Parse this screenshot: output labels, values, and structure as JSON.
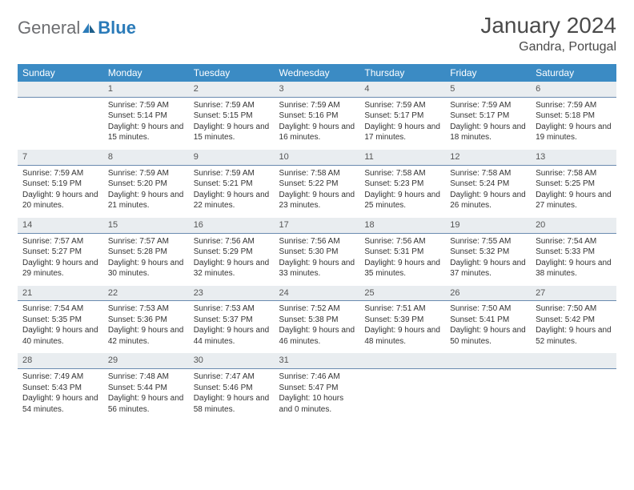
{
  "logo": {
    "general": "General",
    "blue": "Blue"
  },
  "title": "January 2024",
  "location": "Gandra, Portugal",
  "colors": {
    "header_bg": "#3b8bc4",
    "header_text": "#ffffff",
    "daynum_bg": "#e9edf0",
    "daynum_border": "#6a8bb0",
    "logo_gray": "#6d6e71",
    "logo_blue": "#2b7bb9",
    "text": "#333333",
    "page_bg": "#ffffff"
  },
  "weekdays": [
    "Sunday",
    "Monday",
    "Tuesday",
    "Wednesday",
    "Thursday",
    "Friday",
    "Saturday"
  ],
  "first_weekday_index": 1,
  "days": [
    {
      "n": 1,
      "sunrise": "7:59 AM",
      "sunset": "5:14 PM",
      "daylight": "9 hours and 15 minutes."
    },
    {
      "n": 2,
      "sunrise": "7:59 AM",
      "sunset": "5:15 PM",
      "daylight": "9 hours and 15 minutes."
    },
    {
      "n": 3,
      "sunrise": "7:59 AM",
      "sunset": "5:16 PM",
      "daylight": "9 hours and 16 minutes."
    },
    {
      "n": 4,
      "sunrise": "7:59 AM",
      "sunset": "5:17 PM",
      "daylight": "9 hours and 17 minutes."
    },
    {
      "n": 5,
      "sunrise": "7:59 AM",
      "sunset": "5:17 PM",
      "daylight": "9 hours and 18 minutes."
    },
    {
      "n": 6,
      "sunrise": "7:59 AM",
      "sunset": "5:18 PM",
      "daylight": "9 hours and 19 minutes."
    },
    {
      "n": 7,
      "sunrise": "7:59 AM",
      "sunset": "5:19 PM",
      "daylight": "9 hours and 20 minutes."
    },
    {
      "n": 8,
      "sunrise": "7:59 AM",
      "sunset": "5:20 PM",
      "daylight": "9 hours and 21 minutes."
    },
    {
      "n": 9,
      "sunrise": "7:59 AM",
      "sunset": "5:21 PM",
      "daylight": "9 hours and 22 minutes."
    },
    {
      "n": 10,
      "sunrise": "7:58 AM",
      "sunset": "5:22 PM",
      "daylight": "9 hours and 23 minutes."
    },
    {
      "n": 11,
      "sunrise": "7:58 AM",
      "sunset": "5:23 PM",
      "daylight": "9 hours and 25 minutes."
    },
    {
      "n": 12,
      "sunrise": "7:58 AM",
      "sunset": "5:24 PM",
      "daylight": "9 hours and 26 minutes."
    },
    {
      "n": 13,
      "sunrise": "7:58 AM",
      "sunset": "5:25 PM",
      "daylight": "9 hours and 27 minutes."
    },
    {
      "n": 14,
      "sunrise": "7:57 AM",
      "sunset": "5:27 PM",
      "daylight": "9 hours and 29 minutes."
    },
    {
      "n": 15,
      "sunrise": "7:57 AM",
      "sunset": "5:28 PM",
      "daylight": "9 hours and 30 minutes."
    },
    {
      "n": 16,
      "sunrise": "7:56 AM",
      "sunset": "5:29 PM",
      "daylight": "9 hours and 32 minutes."
    },
    {
      "n": 17,
      "sunrise": "7:56 AM",
      "sunset": "5:30 PM",
      "daylight": "9 hours and 33 minutes."
    },
    {
      "n": 18,
      "sunrise": "7:56 AM",
      "sunset": "5:31 PM",
      "daylight": "9 hours and 35 minutes."
    },
    {
      "n": 19,
      "sunrise": "7:55 AM",
      "sunset": "5:32 PM",
      "daylight": "9 hours and 37 minutes."
    },
    {
      "n": 20,
      "sunrise": "7:54 AM",
      "sunset": "5:33 PM",
      "daylight": "9 hours and 38 minutes."
    },
    {
      "n": 21,
      "sunrise": "7:54 AM",
      "sunset": "5:35 PM",
      "daylight": "9 hours and 40 minutes."
    },
    {
      "n": 22,
      "sunrise": "7:53 AM",
      "sunset": "5:36 PM",
      "daylight": "9 hours and 42 minutes."
    },
    {
      "n": 23,
      "sunrise": "7:53 AM",
      "sunset": "5:37 PM",
      "daylight": "9 hours and 44 minutes."
    },
    {
      "n": 24,
      "sunrise": "7:52 AM",
      "sunset": "5:38 PM",
      "daylight": "9 hours and 46 minutes."
    },
    {
      "n": 25,
      "sunrise": "7:51 AM",
      "sunset": "5:39 PM",
      "daylight": "9 hours and 48 minutes."
    },
    {
      "n": 26,
      "sunrise": "7:50 AM",
      "sunset": "5:41 PM",
      "daylight": "9 hours and 50 minutes."
    },
    {
      "n": 27,
      "sunrise": "7:50 AM",
      "sunset": "5:42 PM",
      "daylight": "9 hours and 52 minutes."
    },
    {
      "n": 28,
      "sunrise": "7:49 AM",
      "sunset": "5:43 PM",
      "daylight": "9 hours and 54 minutes."
    },
    {
      "n": 29,
      "sunrise": "7:48 AM",
      "sunset": "5:44 PM",
      "daylight": "9 hours and 56 minutes."
    },
    {
      "n": 30,
      "sunrise": "7:47 AM",
      "sunset": "5:46 PM",
      "daylight": "9 hours and 58 minutes."
    },
    {
      "n": 31,
      "sunrise": "7:46 AM",
      "sunset": "5:47 PM",
      "daylight": "10 hours and 0 minutes."
    }
  ],
  "labels": {
    "sunrise": "Sunrise:",
    "sunset": "Sunset:",
    "daylight": "Daylight:"
  }
}
